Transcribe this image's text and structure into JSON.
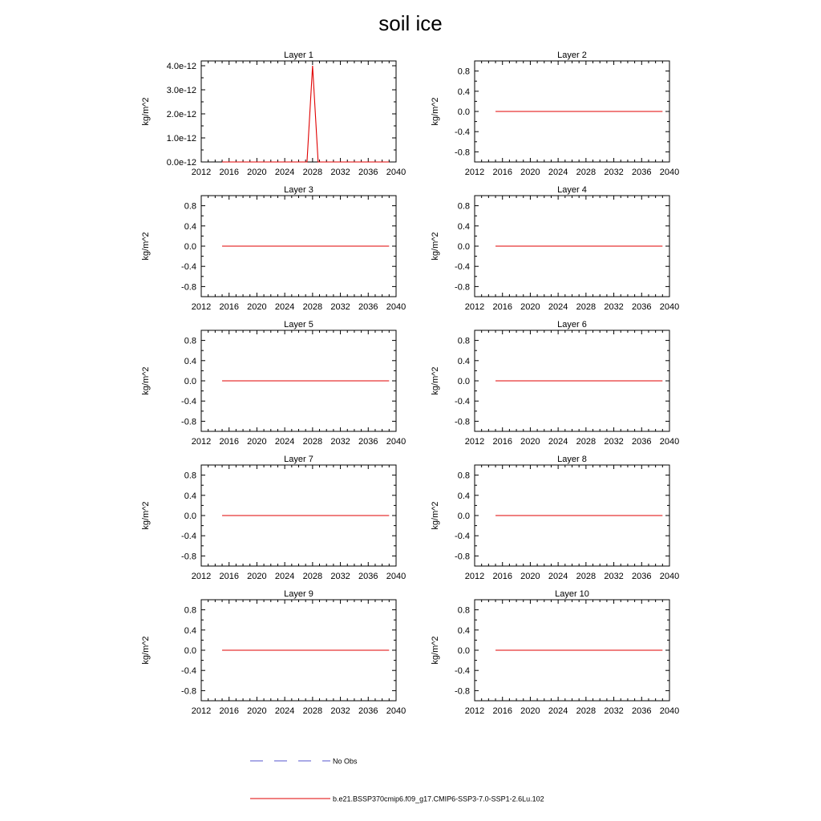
{
  "figure": {
    "title": "soil ice"
  },
  "colors": {
    "model": "#e00000",
    "obs": "#5555cc",
    "axis": "#000000"
  },
  "legend": {
    "entries": [
      {
        "label": "No Obs",
        "style": "dashed",
        "color": "#5555cc"
      },
      {
        "label": "b.e21.BSSP370cmip6.f09_g17.CMIP6-SSP3-7.0-SSP1-2.6Lu.102",
        "style": "solid",
        "color": "#e00000"
      }
    ]
  },
  "chart_data": [
    {
      "type": "line",
      "title": "Layer 1",
      "ylabel": "kg/m^2",
      "xlim": [
        2012,
        2040
      ],
      "ylim": [
        0,
        4.2e-12
      ],
      "xticks": [
        2012,
        2016,
        2020,
        2024,
        2028,
        2032,
        2036,
        2040
      ],
      "xtick_labels": [
        "2012",
        "2016",
        "2020",
        "2024",
        "2028",
        "2032",
        "2036",
        "2040"
      ],
      "yticks": [
        0,
        1e-12,
        2e-12,
        3e-12,
        4e-12
      ],
      "ytick_labels": [
        "0.0e-12",
        "1.0e-12",
        "2.0e-12",
        "3.0e-12",
        "4.0e-12"
      ],
      "series": [
        {
          "x": [
            2015,
            2027.2,
            2028,
            2028.8,
            2039
          ],
          "y": [
            0,
            0,
            4e-12,
            0,
            0
          ]
        }
      ]
    },
    {
      "type": "line",
      "title": "Layer 2",
      "ylabel": "kg/m^2",
      "xlim": [
        2012,
        2040
      ],
      "ylim": [
        -1,
        1
      ],
      "xticks": [
        2012,
        2016,
        2020,
        2024,
        2028,
        2032,
        2036,
        2040
      ],
      "xtick_labels": [
        "2012",
        "2016",
        "2020",
        "2024",
        "2028",
        "2032",
        "2036",
        "2040"
      ],
      "yticks": [
        0.8,
        0.4,
        0,
        -0.4,
        -0.8
      ],
      "ytick_labels": [
        "0.8",
        "0.4",
        "0.0",
        "-0.4",
        "-0.8"
      ],
      "series": [
        {
          "x": [
            2015,
            2039
          ],
          "y": [
            0,
            0
          ]
        }
      ]
    },
    {
      "type": "line",
      "title": "Layer 3",
      "ylabel": "kg/m^2",
      "xlim": [
        2012,
        2040
      ],
      "ylim": [
        -1,
        1
      ],
      "xticks": [
        2012,
        2016,
        2020,
        2024,
        2028,
        2032,
        2036,
        2040
      ],
      "xtick_labels": [
        "2012",
        "2016",
        "2020",
        "2024",
        "2028",
        "2032",
        "2036",
        "2040"
      ],
      "yticks": [
        0.8,
        0.4,
        0,
        -0.4,
        -0.8
      ],
      "ytick_labels": [
        "0.8",
        "0.4",
        "0.0",
        "-0.4",
        "-0.8"
      ],
      "series": [
        {
          "x": [
            2015,
            2039
          ],
          "y": [
            0,
            0
          ]
        }
      ]
    },
    {
      "type": "line",
      "title": "Layer 4",
      "ylabel": "kg/m^2",
      "xlim": [
        2012,
        2040
      ],
      "ylim": [
        -1,
        1
      ],
      "xticks": [
        2012,
        2016,
        2020,
        2024,
        2028,
        2032,
        2036,
        2040
      ],
      "xtick_labels": [
        "2012",
        "2016",
        "2020",
        "2024",
        "2028",
        "2032",
        "2036",
        "2040"
      ],
      "yticks": [
        0.8,
        0.4,
        0,
        -0.4,
        -0.8
      ],
      "ytick_labels": [
        "0.8",
        "0.4",
        "0.0",
        "-0.4",
        "-0.8"
      ],
      "series": [
        {
          "x": [
            2015,
            2039
          ],
          "y": [
            0,
            0
          ]
        }
      ]
    },
    {
      "type": "line",
      "title": "Layer 5",
      "ylabel": "kg/m^2",
      "xlim": [
        2012,
        2040
      ],
      "ylim": [
        -1,
        1
      ],
      "xticks": [
        2012,
        2016,
        2020,
        2024,
        2028,
        2032,
        2036,
        2040
      ],
      "xtick_labels": [
        "2012",
        "2016",
        "2020",
        "2024",
        "2028",
        "2032",
        "2036",
        "2040"
      ],
      "yticks": [
        0.8,
        0.4,
        0,
        -0.4,
        -0.8
      ],
      "ytick_labels": [
        "0.8",
        "0.4",
        "0.0",
        "-0.4",
        "-0.8"
      ],
      "series": [
        {
          "x": [
            2015,
            2039
          ],
          "y": [
            0,
            0
          ]
        }
      ]
    },
    {
      "type": "line",
      "title": "Layer 6",
      "ylabel": "kg/m^2",
      "xlim": [
        2012,
        2040
      ],
      "ylim": [
        -1,
        1
      ],
      "xticks": [
        2012,
        2016,
        2020,
        2024,
        2028,
        2032,
        2036,
        2040
      ],
      "xtick_labels": [
        "2012",
        "2016",
        "2020",
        "2024",
        "2028",
        "2032",
        "2036",
        "2040"
      ],
      "yticks": [
        0.8,
        0.4,
        0,
        -0.4,
        -0.8
      ],
      "ytick_labels": [
        "0.8",
        "0.4",
        "0.0",
        "-0.4",
        "-0.8"
      ],
      "series": [
        {
          "x": [
            2015,
            2039
          ],
          "y": [
            0,
            0
          ]
        }
      ]
    },
    {
      "type": "line",
      "title": "Layer 7",
      "ylabel": "kg/m^2",
      "xlim": [
        2012,
        2040
      ],
      "ylim": [
        -1,
        1
      ],
      "xticks": [
        2012,
        2016,
        2020,
        2024,
        2028,
        2032,
        2036,
        2040
      ],
      "xtick_labels": [
        "2012",
        "2016",
        "2020",
        "2024",
        "2028",
        "2032",
        "2036",
        "2040"
      ],
      "yticks": [
        0.8,
        0.4,
        0,
        -0.4,
        -0.8
      ],
      "ytick_labels": [
        "0.8",
        "0.4",
        "0.0",
        "-0.4",
        "-0.8"
      ],
      "series": [
        {
          "x": [
            2015,
            2039
          ],
          "y": [
            0,
            0
          ]
        }
      ]
    },
    {
      "type": "line",
      "title": "Layer 8",
      "ylabel": "kg/m^2",
      "xlim": [
        2012,
        2040
      ],
      "ylim": [
        -1,
        1
      ],
      "xticks": [
        2012,
        2016,
        2020,
        2024,
        2028,
        2032,
        2036,
        2040
      ],
      "xtick_labels": [
        "2012",
        "2016",
        "2020",
        "2024",
        "2028",
        "2032",
        "2036",
        "2040"
      ],
      "yticks": [
        0.8,
        0.4,
        0,
        -0.4,
        -0.8
      ],
      "ytick_labels": [
        "0.8",
        "0.4",
        "0.0",
        "-0.4",
        "-0.8"
      ],
      "series": [
        {
          "x": [
            2015,
            2039
          ],
          "y": [
            0,
            0
          ]
        }
      ]
    },
    {
      "type": "line",
      "title": "Layer 9",
      "ylabel": "kg/m^2",
      "xlim": [
        2012,
        2040
      ],
      "ylim": [
        -1,
        1
      ],
      "xticks": [
        2012,
        2016,
        2020,
        2024,
        2028,
        2032,
        2036,
        2040
      ],
      "xtick_labels": [
        "2012",
        "2016",
        "2020",
        "2024",
        "2028",
        "2032",
        "2036",
        "2040"
      ],
      "yticks": [
        0.8,
        0.4,
        0,
        -0.4,
        -0.8
      ],
      "ytick_labels": [
        "0.8",
        "0.4",
        "0.0",
        "-0.4",
        "-0.8"
      ],
      "series": [
        {
          "x": [
            2015,
            2039
          ],
          "y": [
            0,
            0
          ]
        }
      ]
    },
    {
      "type": "line",
      "title": "Layer 10",
      "ylabel": "kg/m^2",
      "xlim": [
        2012,
        2040
      ],
      "ylim": [
        -1,
        1
      ],
      "xticks": [
        2012,
        2016,
        2020,
        2024,
        2028,
        2032,
        2036,
        2040
      ],
      "xtick_labels": [
        "2012",
        "2016",
        "2020",
        "2024",
        "2028",
        "2032",
        "2036",
        "2040"
      ],
      "yticks": [
        0.8,
        0.4,
        0,
        -0.4,
        -0.8
      ],
      "ytick_labels": [
        "0.8",
        "0.4",
        "0.0",
        "-0.4",
        "-0.8"
      ],
      "series": [
        {
          "x": [
            2015,
            2039
          ],
          "y": [
            0,
            0
          ]
        }
      ]
    }
  ]
}
